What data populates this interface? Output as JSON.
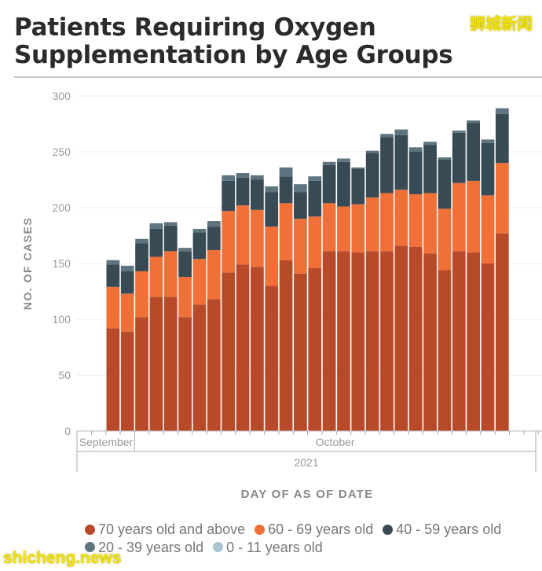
{
  "title": "Patients Requiring Oxygen Supplementation by Age Groups",
  "title_lines": [
    "Patients Requiring Oxygen",
    "Supplementation by Age Groups"
  ],
  "watermarks": {
    "top_right": "狮城新闻",
    "bottom_left": "shicheng.news"
  },
  "chart_data": {
    "type": "bar",
    "stacked": true,
    "title": "Patients Requiring Oxygen Supplementation by Age Groups",
    "ylabel": "NO. OF CASES",
    "xlabel": "DAY OF AS OF DATE",
    "ylim": [
      0,
      300
    ],
    "yticks": [
      0,
      50,
      100,
      150,
      200,
      250,
      300
    ],
    "grid": true,
    "legend_position": "bottom",
    "x_axis": {
      "months": [
        {
          "label": "September",
          "days": 4
        },
        {
          "label": "October",
          "days": 28
        }
      ],
      "year": "2021",
      "first_day": "2021-09-27"
    },
    "categories": [
      "2021-09-29",
      "2021-09-30",
      "2021-10-01",
      "2021-10-02",
      "2021-10-03",
      "2021-10-04",
      "2021-10-05",
      "2021-10-06",
      "2021-10-07",
      "2021-10-08",
      "2021-10-09",
      "2021-10-10",
      "2021-10-11",
      "2021-10-12",
      "2021-10-13",
      "2021-10-14",
      "2021-10-15",
      "2021-10-16",
      "2021-10-17",
      "2021-10-18",
      "2021-10-19",
      "2021-10-20",
      "2021-10-21",
      "2021-10-22",
      "2021-10-23",
      "2021-10-24",
      "2021-10-25",
      "2021-10-26"
    ],
    "series": [
      {
        "name": "70 years old and above",
        "color": "#b84a2a",
        "values": [
          92,
          89,
          102,
          120,
          120,
          102,
          113,
          118,
          142,
          149,
          147,
          130,
          153,
          141,
          146,
          161,
          161,
          160,
          161,
          161,
          166,
          165,
          159,
          144,
          161,
          160,
          150,
          177
        ]
      },
      {
        "name": "60 - 69 years old",
        "color": "#f07038",
        "values": [
          37,
          34,
          41,
          36,
          41,
          36,
          41,
          44,
          55,
          53,
          51,
          53,
          51,
          49,
          46,
          43,
          40,
          43,
          48,
          52,
          50,
          47,
          54,
          55,
          61,
          64,
          61,
          63
        ]
      },
      {
        "name": "40 - 59 years old",
        "color": "#384a54",
        "values": [
          20,
          20,
          25,
          25,
          23,
          23,
          24,
          21,
          27,
          25,
          27,
          31,
          24,
          24,
          32,
          34,
          40,
          32,
          40,
          50,
          49,
          38,
          43,
          44,
          45,
          52,
          47,
          44
        ]
      },
      {
        "name": "20 - 39 years old",
        "color": "#5e7580",
        "values": [
          4,
          5,
          4,
          5,
          3,
          3,
          3,
          5,
          5,
          4,
          4,
          5,
          8,
          7,
          4,
          3,
          3,
          1,
          2,
          3,
          5,
          4,
          3,
          2,
          2,
          2,
          3,
          5
        ]
      },
      {
        "name": "0 - 11 years old",
        "color": "#a9c5d1",
        "values": [
          0,
          0,
          0,
          0,
          0,
          0,
          0,
          0,
          0,
          0,
          0,
          0,
          0,
          0,
          0,
          0,
          0,
          0,
          0,
          0,
          0,
          0,
          0,
          0,
          0,
          0,
          0,
          0
        ]
      }
    ]
  }
}
